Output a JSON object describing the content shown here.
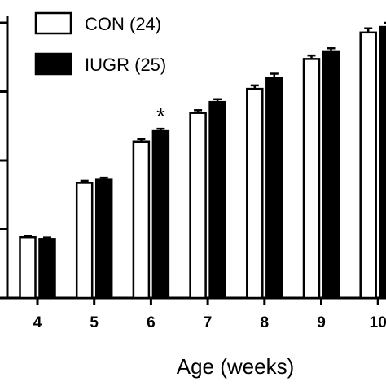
{
  "chart_data": {
    "type": "bar",
    "categories": [
      "4",
      "5",
      "6",
      "7",
      "8",
      "9",
      "10"
    ],
    "xlabel": "Age (weeks)",
    "ylabel": "",
    "ylim": [
      0,
      10
    ],
    "yticks": [
      0,
      2,
      4,
      6,
      8
    ],
    "legend_position": "top-left",
    "series": [
      {
        "name": "CON (24)",
        "values": [
          1.77,
          3.35,
          4.55,
          5.38,
          6.08,
          6.95,
          7.72
        ],
        "errors": [
          0.04,
          0.06,
          0.07,
          0.08,
          0.1,
          0.1,
          0.12
        ],
        "color": "#ffffff"
      },
      {
        "name": "IUGR (25)",
        "values": [
          1.72,
          3.44,
          4.85,
          5.7,
          6.4,
          7.15,
          7.88
        ],
        "errors": [
          0.04,
          0.06,
          0.07,
          0.08,
          0.12,
          0.11,
          0.12
        ],
        "color": "#000000"
      }
    ],
    "annotations": [
      {
        "text": "*",
        "category": "6"
      }
    ]
  }
}
